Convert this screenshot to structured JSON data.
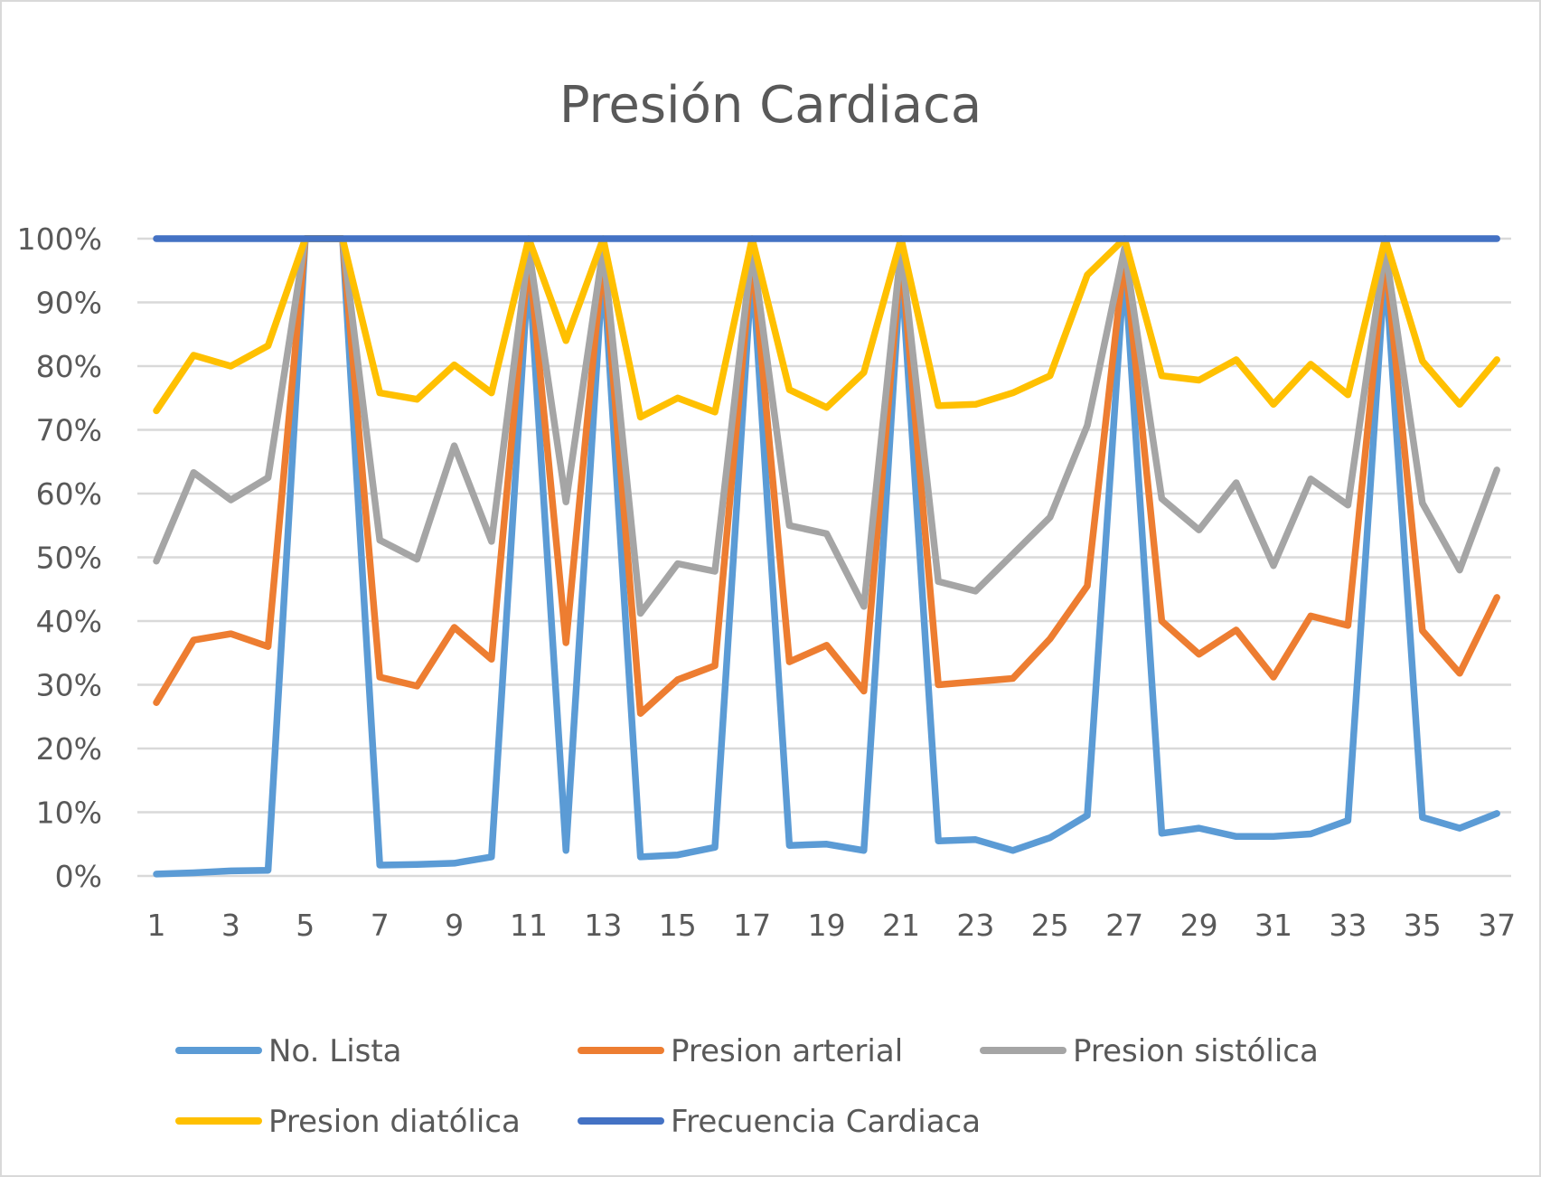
{
  "chart_data": {
    "type": "line",
    "title": "Presión Cardiaca",
    "ylim": [
      0,
      1
    ],
    "yticks": [
      "0%",
      "10%",
      "20%",
      "30%",
      "40%",
      "50%",
      "60%",
      "70%",
      "80%",
      "90%",
      "100%"
    ],
    "x": [
      1,
      2,
      3,
      4,
      5,
      6,
      7,
      8,
      9,
      10,
      11,
      12,
      13,
      14,
      15,
      16,
      17,
      18,
      19,
      20,
      21,
      22,
      23,
      24,
      25,
      26,
      27,
      28,
      29,
      30,
      31,
      32,
      33,
      34,
      35,
      36,
      37
    ],
    "xtick_labels": [
      "1",
      "3",
      "5",
      "7",
      "9",
      "11",
      "13",
      "15",
      "17",
      "19",
      "21",
      "23",
      "25",
      "27",
      "29",
      "31",
      "33",
      "35",
      "37"
    ],
    "grid": true,
    "legend_position": "bottom",
    "series": [
      {
        "name": "No. Lista",
        "color": "#5b9bd5",
        "values": [
          0.003,
          0.005,
          0.008,
          0.009,
          1.0,
          1.0,
          0.017,
          0.018,
          0.02,
          0.03,
          0.96,
          0.04,
          0.96,
          0.03,
          0.033,
          0.045,
          0.96,
          0.048,
          0.05,
          0.04,
          0.96,
          0.055,
          0.057,
          0.04,
          0.06,
          0.095,
          0.96,
          0.067,
          0.075,
          0.062,
          0.062,
          0.066,
          0.087,
          0.96,
          0.092,
          0.075,
          0.098
        ]
      },
      {
        "name": "Presion arterial",
        "color": "#ed7d31",
        "values": [
          0.272,
          0.37,
          0.38,
          0.36,
          1.0,
          1.0,
          0.312,
          0.298,
          0.39,
          0.34,
          0.975,
          0.366,
          0.975,
          0.255,
          0.308,
          0.33,
          0.975,
          0.336,
          0.362,
          0.29,
          0.975,
          0.3,
          0.305,
          0.31,
          0.372,
          0.455,
          0.975,
          0.4,
          0.348,
          0.386,
          0.312,
          0.408,
          0.393,
          0.975,
          0.385,
          0.318,
          0.437
        ]
      },
      {
        "name": "Presion sistólica",
        "color": "#a5a5a5",
        "values": [
          0.494,
          0.633,
          0.59,
          0.625,
          1.0,
          1.0,
          0.527,
          0.497,
          0.675,
          0.525,
          0.985,
          0.587,
          0.985,
          0.412,
          0.49,
          0.478,
          0.985,
          0.55,
          0.537,
          0.423,
          0.985,
          0.462,
          0.447,
          0.505,
          0.563,
          0.707,
          0.985,
          0.592,
          0.543,
          0.617,
          0.487,
          0.623,
          0.582,
          0.985,
          0.585,
          0.48,
          0.637
        ]
      },
      {
        "name": "Presion diatólica",
        "color": "#ffc000",
        "values": [
          0.73,
          0.817,
          0.8,
          0.832,
          1.0,
          1.0,
          0.758,
          0.748,
          0.802,
          0.758,
          1.0,
          0.84,
          1.0,
          0.72,
          0.75,
          0.728,
          1.0,
          0.763,
          0.735,
          0.79,
          1.0,
          0.738,
          0.74,
          0.758,
          0.785,
          0.943,
          1.0,
          0.785,
          0.778,
          0.81,
          0.74,
          0.803,
          0.755,
          1.0,
          0.808,
          0.74,
          0.81
        ]
      },
      {
        "name": "Frecuencia Cardiaca",
        "color": "#4472c4",
        "values": [
          1,
          1,
          1,
          1,
          1,
          1,
          1,
          1,
          1,
          1,
          1,
          1,
          1,
          1,
          1,
          1,
          1,
          1,
          1,
          1,
          1,
          1,
          1,
          1,
          1,
          1,
          1,
          1,
          1,
          1,
          1,
          1,
          1,
          1,
          1,
          1,
          1
        ]
      }
    ]
  }
}
